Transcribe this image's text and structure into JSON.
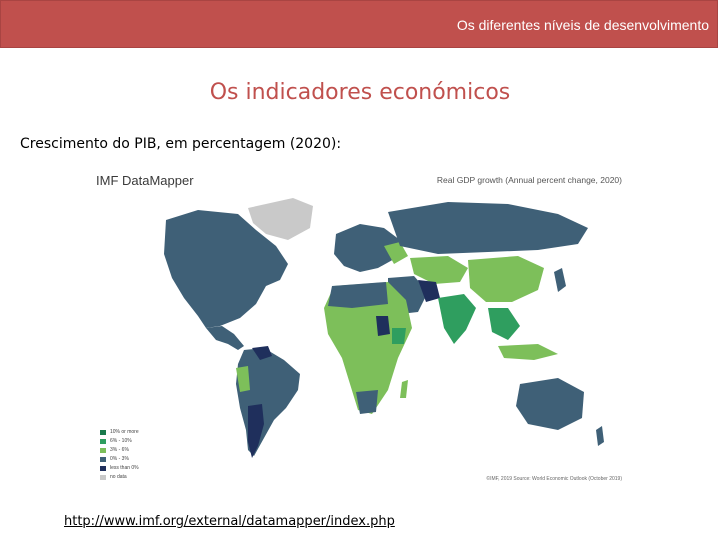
{
  "header": {
    "banner_text": "Os diferentes níveis de desenvolvimento"
  },
  "slide": {
    "title": "Os indicadores económicos",
    "subtitle": "Crescimento do PIB, em percentagem (2020):",
    "link": "http://www.imf.org/external/datamapper/index.php"
  },
  "map": {
    "brand": "IMF DataMapper",
    "title": "Real GDP growth (Annual percent change, 2020)",
    "footnote": "©IMF, 2019  Source: World Economic Outlook (October 2019)",
    "colors": {
      "ten_or_more": "#1a7a4c",
      "six_to_ten": "#2f9e5f",
      "three_to_six": "#7dbf5a",
      "zero_to_three": "#3f6077",
      "less_than_zero": "#1f2f5c",
      "no_data": "#c9c9c9"
    },
    "legend": [
      {
        "label": "10% or more",
        "color": "#1a7a4c"
      },
      {
        "label": "6% - 10%",
        "color": "#2f9e5f"
      },
      {
        "label": "3% - 6%",
        "color": "#7dbf5a"
      },
      {
        "label": "0% - 3%",
        "color": "#3f6077"
      },
      {
        "label": "less than 0%",
        "color": "#1f2f5c"
      },
      {
        "label": "no data",
        "color": "#c9c9c9"
      }
    ]
  }
}
